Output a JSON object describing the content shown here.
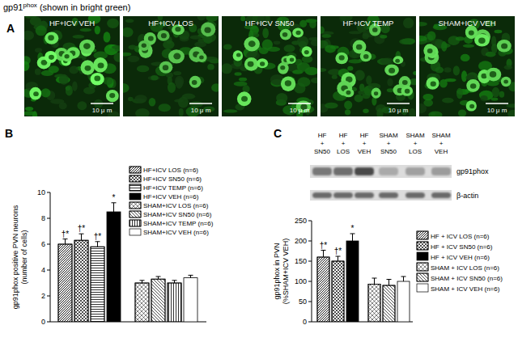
{
  "figure_title": {
    "text": "gp91",
    "sup": "phox",
    "rest": " (shown in bright green)"
  },
  "panel_a": {
    "label": "A",
    "images": [
      {
        "label": "HF+ICV VEH",
        "scale_bar": "10 μ m"
      },
      {
        "label": "HF+ICV LOS",
        "scale_bar": "10 μ m"
      },
      {
        "label": "HF+ICV SN50",
        "scale_bar": "10 μ m"
      },
      {
        "label": "HF+ICV TEMP",
        "scale_bar": "10 μ m"
      },
      {
        "label": "SHAM+ICV VEH",
        "scale_bar": "10 μ m"
      }
    ]
  },
  "blot": {
    "lanes": [
      [
        "HF",
        "+",
        "SN50"
      ],
      [
        "HF",
        "+",
        "LOS"
      ],
      [
        "HF",
        "+",
        "VEH"
      ],
      [
        "SHAM",
        "+",
        "SN50"
      ],
      [
        "SHAM",
        "+",
        "LOS"
      ],
      [
        "SHAM",
        "+",
        "VEH"
      ]
    ],
    "rows": [
      "gp91phox",
      "β-actin"
    ]
  },
  "chart_data": [
    {
      "type": "bar",
      "title": "B",
      "ylabel": [
        "gp91phox positive PVN neurons",
        "(number of cells)"
      ],
      "ylim": [
        0,
        10
      ],
      "yticks": [
        0,
        2,
        4,
        6,
        8,
        10
      ],
      "legend": "upper right",
      "series": [
        {
          "name": "HF+ICV LOS (n=6)",
          "color": "#ffffff",
          "values": [
            6
          ],
          "errors": [
            0.4
          ],
          "annotation": "†*"
        },
        {
          "name": "HF+ICV SN50 (n=6)",
          "color": "#ffffff",
          "values": [
            6.3
          ],
          "errors": [
            0.5
          ],
          "annotation": "†*"
        },
        {
          "name": "HF+ICV TEMP (n=6)",
          "color": "#ffffff",
          "values": [
            5.8
          ],
          "errors": [
            0.4
          ],
          "annotation": "†*"
        },
        {
          "name": "HF+ICV VEH (n=6)",
          "color": "#000000",
          "values": [
            8.5
          ],
          "errors": [
            0.7
          ],
          "annotation": "*"
        },
        {
          "name": "SHAM+ICV LOS (n=6)",
          "color": "#ffffff",
          "values": [
            3
          ],
          "errors": [
            0.2
          ]
        },
        {
          "name": "SHAM+ICV SN50 (n=6)",
          "color": "#ffffff",
          "values": [
            3.3
          ],
          "errors": [
            0.2
          ]
        },
        {
          "name": "SHAM+ICV TEMP (n=6)",
          "color": "#ffffff",
          "values": [
            3
          ],
          "errors": [
            0.2
          ]
        },
        {
          "name": "SHAM+ICV VEH (n=6)",
          "color": "#ffffff",
          "values": [
            3.4
          ],
          "errors": [
            0.2
          ]
        }
      ]
    },
    {
      "type": "bar",
      "title": "C",
      "ylabel": [
        "gp91phox in PVN",
        "(%SHAM+ICV VEH)"
      ],
      "ylim": [
        0,
        250
      ],
      "yticks": [
        0,
        50,
        100,
        150,
        200,
        250
      ],
      "legend": "upper right",
      "series": [
        {
          "name": "HF + ICV LOS (n=6)",
          "color": "#ffffff",
          "values": [
            160
          ],
          "errors": [
            17
          ],
          "annotation": "†*"
        },
        {
          "name": "HF + ICV SN50 (n=6)",
          "color": "#ffffff",
          "values": [
            150
          ],
          "errors": [
            12
          ],
          "annotation": "†*"
        },
        {
          "name": "HF + ICV VEH (n=6)",
          "color": "#000000",
          "values": [
            200
          ],
          "errors": [
            18
          ],
          "annotation": "*"
        },
        {
          "name": "SHAM + ICV LOS (n=6)",
          "color": "#ffffff",
          "values": [
            93
          ],
          "errors": [
            15
          ]
        },
        {
          "name": "SHAM + ICV SN50 (n=6)",
          "color": "#ffffff",
          "values": [
            90
          ],
          "errors": [
            15
          ]
        },
        {
          "name": "SHAM + ICV VEH (n=6)",
          "color": "#ffffff",
          "values": [
            100
          ],
          "errors": [
            12
          ]
        }
      ]
    }
  ]
}
